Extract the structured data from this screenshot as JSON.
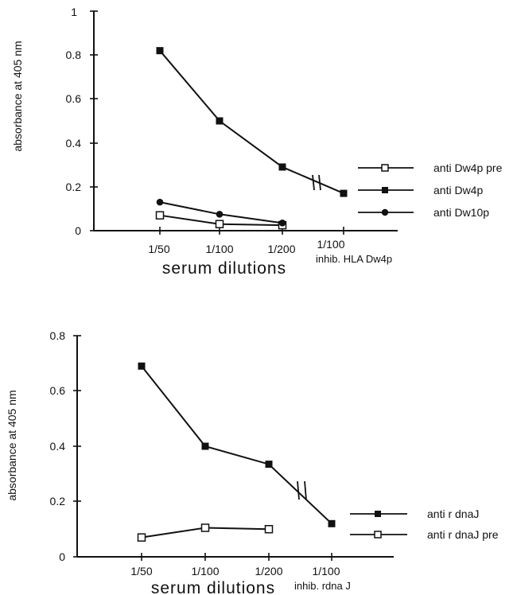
{
  "colors": {
    "ink": "#111111",
    "background": "#ffffff"
  },
  "chart_data": [
    {
      "type": "line",
      "ylabel": "absorbance at 405 nm",
      "xlabel": "serum dilutions",
      "ylim": [
        0,
        1
      ],
      "y_ticks": [
        "0",
        "0.2",
        "0.4",
        "0.6",
        "0.8",
        "1"
      ],
      "categories": [
        "1/50",
        "1/100",
        "1/200",
        "1/100"
      ],
      "x_note": "inhib. HLA Dw4p",
      "grid": false,
      "legend_position": "right",
      "series": [
        {
          "name": "anti Dw4p pre",
          "marker": "open-square",
          "values": [
            0.07,
            0.03,
            0.025,
            null
          ]
        },
        {
          "name": "anti Dw4p",
          "marker": "filled-square",
          "values": [
            0.82,
            0.5,
            0.29,
            0.17
          ]
        },
        {
          "name": "anti Dw10p",
          "marker": "filled-circle",
          "values": [
            0.13,
            0.075,
            0.035,
            null
          ]
        }
      ]
    },
    {
      "type": "line",
      "ylabel": "absorbance at 405 nm",
      "xlabel": "serum dilutions",
      "ylim": [
        0,
        0.8
      ],
      "y_ticks": [
        "0",
        "0.2",
        "0.4",
        "0.6",
        "0.8"
      ],
      "categories": [
        "1/50",
        "1/100",
        "1/200",
        "1/100"
      ],
      "x_note": "inhib. rdna J",
      "grid": false,
      "legend_position": "right",
      "series": [
        {
          "name": "anti r dnaJ",
          "marker": "filled-square",
          "values": [
            0.69,
            0.4,
            0.335,
            0.12
          ]
        },
        {
          "name": "anti r dnaJ pre",
          "marker": "open-square",
          "values": [
            0.07,
            0.105,
            0.1,
            null
          ]
        }
      ]
    }
  ]
}
